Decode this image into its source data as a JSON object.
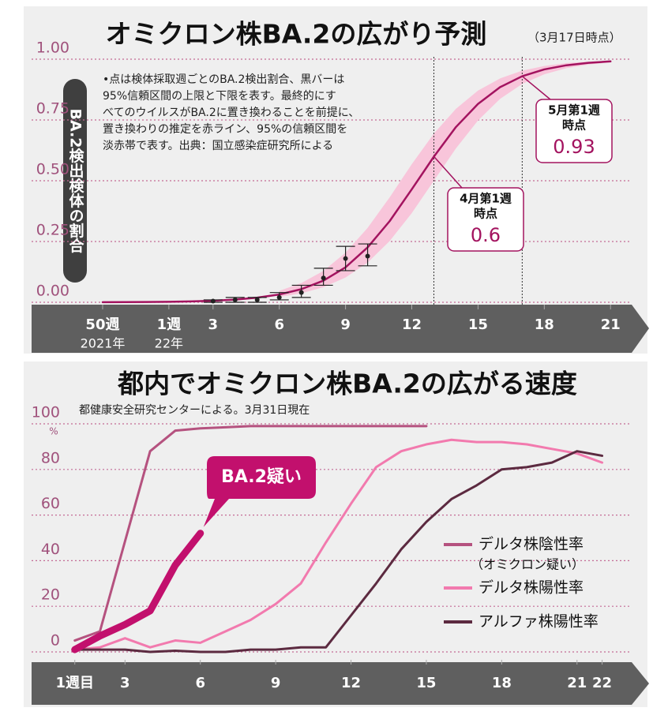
{
  "chart_data": [
    {
      "type": "line",
      "title": "オミクロン株BA.2の広がり予測",
      "subtitle": "（3月17日時点）",
      "y_label": "BA.2検出検体の割合",
      "note_lines": [
        "•点は検体採取週ごとのBA.2検出割合、黒バーは",
        "95%信頼区間の上限と下限を表す。最終的にす",
        "べてのウイルスがBA.2に置き換わることを前提に、",
        "置き換わりの推定を赤ライン、95%の信頼区間を",
        "淡赤帯で表す。出典：国立感染症研究所による"
      ],
      "xlim": [
        -3,
        21.6
      ],
      "xticks": [
        {
          "value": -2,
          "label": "50週"
        },
        {
          "value": 1,
          "label": "1週"
        },
        3,
        6,
        9,
        12,
        15,
        18,
        21
      ],
      "year_labels": [
        {
          "x": -2,
          "label": "2021年"
        },
        {
          "x": 1,
          "label": "22年"
        }
      ],
      "ylim": [
        0,
        1
      ],
      "yticks": [
        {
          "value": 0,
          "label": "0.00"
        },
        {
          "value": 0.25,
          "label": "0.25"
        },
        {
          "value": 0.5,
          "label": "0.50"
        },
        {
          "value": 0.75,
          "label": "0.75"
        },
        {
          "value": 1,
          "label": "1.00"
        }
      ],
      "grid": true,
      "series": [
        {
          "color": "#a3135f",
          "x": [
            -2,
            -1,
            0,
            1,
            2,
            3,
            4,
            5,
            6,
            7,
            8,
            9,
            10,
            11,
            12,
            13,
            14,
            15,
            16,
            17,
            18,
            19,
            20,
            21
          ],
          "values": [
            0.0004,
            0.0007,
            0.0013,
            0.0022,
            0.0037,
            0.0064,
            0.011,
            0.019,
            0.032,
            0.054,
            0.089,
            0.144,
            0.226,
            0.334,
            0.465,
            0.599,
            0.721,
            0.816,
            0.885,
            0.93,
            0.958,
            0.975,
            0.985,
            0.991
          ]
        }
      ],
      "band": {
        "color": "#f8c5da",
        "x": [
          6,
          7,
          8,
          9,
          10,
          11,
          12,
          13,
          14,
          15,
          16,
          17,
          18,
          19,
          20,
          21
        ],
        "lower": [
          0.022,
          0.037,
          0.062,
          0.102,
          0.163,
          0.252,
          0.367,
          0.5,
          0.633,
          0.748,
          0.837,
          0.898,
          0.938,
          0.963,
          0.978,
          0.987
        ],
        "upper": [
          0.047,
          0.079,
          0.129,
          0.204,
          0.306,
          0.432,
          0.568,
          0.694,
          0.796,
          0.871,
          0.921,
          0.953,
          0.972,
          0.984,
          0.99,
          0.994
        ]
      },
      "points": {
        "color": "#222222",
        "x": [
          3,
          4,
          5,
          6,
          7,
          8,
          9,
          10
        ],
        "values": [
          0.005,
          0.01,
          0.01,
          0.02,
          0.04,
          0.1,
          0.18,
          0.19
        ],
        "lower": [
          0,
          0,
          0,
          0.01,
          0.02,
          0.07,
          0.13,
          0.15
        ],
        "upper": [
          0.01,
          0.02,
          0.02,
          0.04,
          0.07,
          0.14,
          0.23,
          0.24
        ]
      },
      "annotations": [
        {
          "x": 13,
          "value": 0.6,
          "lines": [
            "4月第1週",
            "時点"
          ]
        },
        {
          "x": 17,
          "value": 0.93,
          "lines": [
            "5月第1週",
            "時点"
          ]
        }
      ]
    },
    {
      "type": "line",
      "title": "都内でオミクロン株BA.2の広がる速度",
      "subtitle": "都健康安全研究センターによる。3月31日現在",
      "y_unit": "%",
      "xlim": [
        0.6,
        22.8
      ],
      "xticks": [
        {
          "value": 1,
          "label": "1週目"
        },
        3,
        6,
        9,
        12,
        15,
        18,
        21,
        22
      ],
      "ylim": [
        0,
        100
      ],
      "yticks": [
        0,
        20,
        40,
        60,
        80,
        100
      ],
      "grid": true,
      "legend": "lower right",
      "series": [
        {
          "name": "デルタ株陰性率",
          "name_note": "（オミクロン疑い）",
          "color": "#b5527f",
          "x": [
            1,
            2,
            4,
            5,
            6,
            7,
            8,
            9,
            10,
            11,
            12,
            13,
            14,
            15
          ],
          "values": [
            5,
            9,
            88,
            97,
            98,
            98.5,
            99,
            99,
            99,
            99,
            99,
            99,
            99,
            99
          ]
        },
        {
          "name": "デルタ株陽性率",
          "color": "#f27aae",
          "x": [
            1,
            2,
            3,
            4,
            5,
            6,
            7,
            8,
            9,
            10,
            11,
            12,
            13,
            14,
            15,
            16,
            17,
            18,
            19,
            20,
            21,
            22
          ],
          "values": [
            1,
            2,
            6,
            2,
            5,
            4,
            9,
            14,
            21,
            30,
            48,
            65,
            81,
            88,
            91,
            93,
            92,
            92,
            91,
            89,
            87,
            83
          ]
        },
        {
          "name": "アルファ株陽性率",
          "color": "#5c2a40",
          "x": [
            1,
            2,
            3,
            4,
            5,
            6,
            7,
            8,
            9,
            10,
            11,
            12,
            13,
            14,
            15,
            16,
            17,
            18,
            19,
            20,
            21,
            22
          ],
          "values": [
            1,
            1,
            1,
            0,
            0.5,
            0,
            0,
            1,
            1,
            2,
            2,
            16,
            30,
            45,
            57,
            67,
            73,
            80,
            81,
            83,
            88,
            86
          ]
        },
        {
          "name": "BA.2疑い",
          "color": "#c2106d",
          "callout": true,
          "x": [
            1,
            2,
            3,
            4,
            5,
            6
          ],
          "values": [
            1,
            7,
            12,
            18,
            38,
            52
          ]
        }
      ]
    }
  ]
}
